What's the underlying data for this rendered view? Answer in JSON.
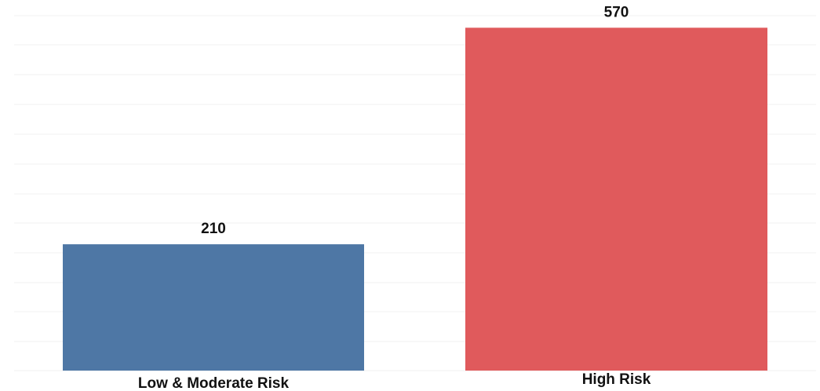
{
  "chart_data": {
    "type": "bar",
    "title": "",
    "xlabel": "",
    "ylabel": "",
    "categories": [
      "Low & Moderate Risk",
      "High Risk"
    ],
    "values": [
      210,
      570
    ],
    "data_labels": [
      "210",
      "570"
    ],
    "colors": [
      "#4e77a5",
      "#e05a5c"
    ],
    "ylim": [
      0,
      590
    ],
    "grid": true,
    "legend": "none"
  }
}
